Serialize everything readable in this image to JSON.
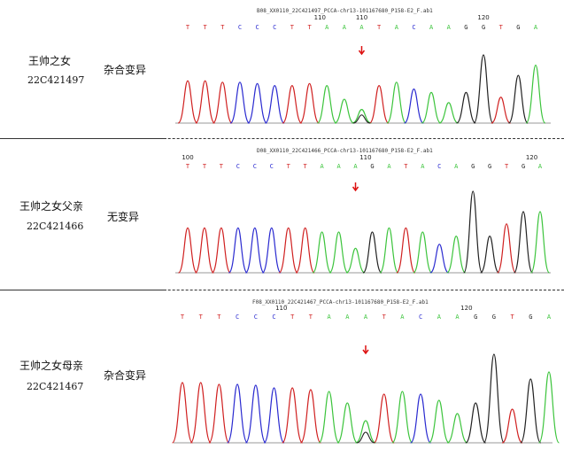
{
  "colors": {
    "A": "#3cc43c",
    "C": "#2a2ad0",
    "G": "#222222",
    "T": "#d02020",
    "arrow": "#dd1010"
  },
  "panels": [
    {
      "sample_name": "王帅之女",
      "sample_id": "22C421497",
      "variant": "杂合变异",
      "file": "B08_XX0110_22C421497_PCCA-chr13-101167680_P158-E2_F.ab1",
      "bases": [
        "T",
        "T",
        "T",
        "C",
        "C",
        "C",
        "T",
        "T",
        "A",
        "A",
        "A",
        "T",
        "A",
        "C",
        "A",
        "A",
        "G",
        "G",
        "T",
        "G",
        "A"
      ],
      "pos_labels": [
        {
          "text": "110",
          "at": 7.6
        },
        {
          "text": "110",
          "at": 10
        },
        {
          "text": "120",
          "at": 17
        }
      ],
      "heterozygous": true
    },
    {
      "sample_name": "王帅之女父亲",
      "sample_id": "22C421466",
      "variant": "无变异",
      "file": "D08_XX0110_22C421466_PCCA-chr13-101167680_P158-E2_F.ab1",
      "bases": [
        "T",
        "T",
        "T",
        "C",
        "C",
        "C",
        "T",
        "T",
        "A",
        "A",
        "A",
        "G",
        "A",
        "T",
        "A",
        "C",
        "A",
        "G",
        "G",
        "T",
        "G",
        "A"
      ],
      "pos_labels": [
        {
          "text": "100",
          "at": 0
        },
        {
          "text": "110",
          "at": 10.6
        },
        {
          "text": "120",
          "at": 20.5
        }
      ],
      "heterozygous": false
    },
    {
      "sample_name": "王帅之女母亲",
      "sample_id": "22C421467",
      "variant": "杂合变异",
      "file": "F08_XX0110_22C421467_PCCA-chr13-101167680_P158-E2_F.ab1",
      "bases": [
        "T",
        "T",
        "T",
        "C",
        "C",
        "C",
        "T",
        "T",
        "A",
        "A",
        "A",
        "T",
        "A",
        "C",
        "A",
        "A",
        "G",
        "G",
        "T",
        "G",
        "A"
      ],
      "pos_labels": [
        {
          "text": "110",
          "at": 5.4
        },
        {
          "text": "120",
          "at": 15.5
        }
      ],
      "heterozygous": true
    }
  ]
}
